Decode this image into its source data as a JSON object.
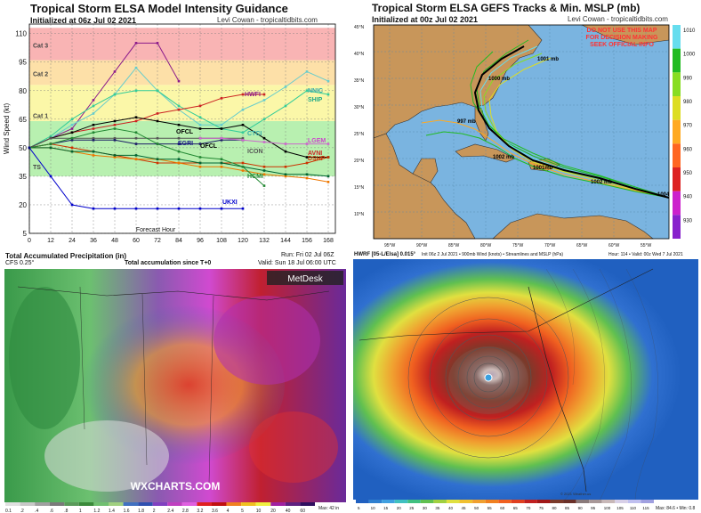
{
  "panel1": {
    "title": "Tropical Storm ELSA Model Intensity Guidance",
    "subtitle": "Initialized at 06z Jul 02 2021",
    "credit": "Levi Cowan - tropicaltidbits.com",
    "ylabel": "Wind Speed (kt)",
    "xlabel": "Forecast Hour",
    "category_labels": [
      "Cat 3",
      "Cat 2",
      "Cat 1",
      "TS"
    ],
    "model_labels": [
      "HWFI",
      "NNIC",
      "SHIP",
      "CTCI",
      "OFCL",
      "OFCL",
      "EGRI",
      "ICON",
      "LGEM",
      "AVNI",
      "HCMI",
      "DSHP",
      "UKXI"
    ],
    "chart_data": {
      "type": "line",
      "x": [
        0,
        12,
        24,
        36,
        48,
        60,
        72,
        84,
        96,
        108,
        120,
        132,
        144,
        156,
        168
      ],
      "xticks": [
        "0",
        "12",
        "24",
        "36",
        "48",
        "60",
        "72",
        "84",
        "96",
        "108",
        "120",
        "132",
        "144",
        "156",
        "168"
      ],
      "yticks": [
        "5",
        "20",
        "35",
        "50",
        "65",
        "80",
        "95",
        "110"
      ],
      "ylim": [
        5,
        115
      ],
      "xlim": [
        0,
        172
      ],
      "bands": [
        {
          "from": 35,
          "to": 64,
          "color": "#b8f0b0"
        },
        {
          "from": 64,
          "to": 83,
          "color": "#fbf7a8"
        },
        {
          "from": 83,
          "to": 96,
          "color": "#fde0a8"
        },
        {
          "from": 96,
          "to": 113,
          "color": "#f9b4b4"
        }
      ],
      "series": [
        {
          "color": "#8b1a8b",
          "x": [
            0,
            12,
            24,
            36,
            48,
            60,
            72,
            84
          ],
          "y": [
            50,
            55,
            60,
            75,
            90,
            105,
            105,
            85
          ]
        },
        {
          "color": "#66cccc",
          "x": [
            0,
            12,
            24,
            36,
            48,
            60,
            72,
            84,
            96,
            108,
            120,
            132,
            144,
            156,
            168
          ],
          "y": [
            50,
            55,
            62,
            68,
            78,
            92,
            80,
            70,
            62,
            62,
            70,
            75,
            82,
            90,
            85
          ]
        },
        {
          "color": "#33cc99",
          "x": [
            0,
            12,
            24,
            36,
            48,
            60,
            72,
            84,
            96,
            108,
            120,
            132,
            144,
            156,
            168
          ],
          "y": [
            50,
            56,
            65,
            72,
            78,
            80,
            80,
            72,
            66,
            60,
            58,
            65,
            72,
            80,
            78
          ]
        },
        {
          "color": "#cc2222",
          "x": [
            0,
            12,
            24,
            36,
            48,
            60,
            72,
            84,
            96,
            108,
            120,
            132
          ],
          "y": [
            50,
            55,
            58,
            60,
            62,
            64,
            68,
            70,
            72,
            76,
            78,
            78
          ]
        },
        {
          "color": "#000000",
          "x": [
            0,
            12,
            24,
            36,
            48,
            60,
            72,
            84,
            96,
            108,
            120,
            132,
            144,
            156,
            168
          ],
          "y": [
            50,
            55,
            58,
            62,
            64,
            66,
            64,
            62,
            60,
            60,
            62,
            55,
            48,
            45,
            45
          ]
        },
        {
          "color": "#555555",
          "x": [
            0,
            12,
            24,
            36,
            48,
            60,
            72,
            84,
            96,
            108,
            120
          ],
          "y": [
            50,
            55,
            55,
            55,
            55,
            55,
            55,
            55,
            55,
            55,
            55
          ]
        },
        {
          "color": "#1a1a66",
          "x": [
            0,
            12,
            24,
            36,
            48,
            60,
            72,
            84,
            96,
            108,
            120
          ],
          "y": [
            50,
            52,
            54,
            54,
            54,
            52,
            52,
            52,
            52,
            54,
            54
          ]
        },
        {
          "color": "#cc66cc",
          "x": [
            96,
            108,
            120,
            132,
            144,
            156,
            168
          ],
          "y": [
            55,
            55,
            54,
            53,
            52,
            52,
            52
          ]
        },
        {
          "color": "#cc3300",
          "x": [
            0,
            12,
            24,
            36,
            48,
            60,
            72,
            84,
            96,
            108,
            120,
            132,
            144,
            156,
            168
          ],
          "y": [
            50,
            52,
            50,
            48,
            46,
            44,
            42,
            42,
            42,
            42,
            42,
            40,
            40,
            42,
            45
          ]
        },
        {
          "color": "#ee7700",
          "x": [
            0,
            12,
            24,
            36,
            48,
            60,
            72,
            84,
            96,
            108,
            120,
            132,
            144,
            156,
            168
          ],
          "y": [
            50,
            50,
            48,
            46,
            45,
            44,
            44,
            42,
            40,
            40,
            38,
            36,
            35,
            34,
            32
          ]
        },
        {
          "color": "#006633",
          "x": [
            0,
            12,
            24,
            36,
            48,
            60,
            72,
            84,
            96,
            108,
            120,
            132,
            144,
            156,
            168
          ],
          "y": [
            50,
            50,
            48,
            48,
            46,
            46,
            44,
            44,
            42,
            42,
            40,
            38,
            36,
            36,
            35
          ]
        },
        {
          "color": "#228833",
          "x": [
            0,
            12,
            24,
            36,
            48,
            60,
            72,
            84,
            96,
            108,
            120,
            132
          ],
          "y": [
            50,
            52,
            55,
            58,
            60,
            58,
            52,
            48,
            45,
            44,
            40,
            30
          ]
        },
        {
          "color": "#0000cc",
          "x": [
            0,
            12,
            24,
            36,
            48,
            60,
            72,
            84,
            96,
            108,
            120
          ],
          "y": [
            50,
            35,
            20,
            18,
            18,
            18,
            18,
            18,
            18,
            18,
            18
          ]
        }
      ]
    }
  },
  "panel2": {
    "title": "Tropical Storm ELSA GEFS Tracks & Min. MSLP (mb)",
    "subtitle": "Initialized at 00z Jul 02 2021",
    "credit": "Levi Cowan - tropicaltidbits.com",
    "warning": [
      "DO NOT USE THIS MAP",
      "FOR DECISION MAKING",
      "SEEK OFFICIAL INFO"
    ],
    "colorbar_labels": [
      "1010",
      "1000",
      "990",
      "980",
      "970",
      "960",
      "950",
      "940",
      "930"
    ],
    "colorbar_colors": [
      "#66ddee",
      "#22bb22",
      "#88dd22",
      "#dddd22",
      "#ffaa22",
      "#ff6622",
      "#dd2222",
      "#cc22cc",
      "#8822cc"
    ],
    "track_labels": [
      "1000 mb",
      "1001 mb",
      "997 mb",
      "1002 mb",
      "1001mb",
      "1002 mb",
      "1004 mb"
    ],
    "lat_labels": [
      "45°N",
      "40°N",
      "35°N",
      "30°N",
      "25°N",
      "20°N",
      "15°N",
      "10°N"
    ],
    "lon_labels": [
      "95°W",
      "90°W",
      "85°W",
      "80°W",
      "75°W",
      "70°W",
      "65°W",
      "60°W",
      "55°W"
    ]
  },
  "panel3": {
    "title": "Total Accumulated Precipitation (in)",
    "model": "CFS 0.25°",
    "subtitle": "Total accumulation since T+0",
    "run": "Run: Fri 02 Jul 06Z",
    "valid": "Valid: Sun 18 Jul 06:00 UTC",
    "logo": "MetDesk",
    "watermark": "WXCHARTS.COM",
    "scale_labels": [
      "0.1",
      ".2",
      ".4",
      ".6",
      ".8",
      "1",
      "1.2",
      "1.4",
      "1.6",
      "1.8",
      "2",
      "2.4",
      "2.8",
      "3.2",
      "3.6",
      "4",
      "5",
      "10",
      "20",
      "40",
      "60"
    ],
    "scale_max": "Max: 42 in"
  },
  "panel4": {
    "title": "HWRF [05-L/Elsa] 0.015°",
    "subtitle": "Init 06z 2 Jul 2021 • 900mb Wind (knots) • Streamlines and MSLP (hPa)",
    "hour": "Hour: 114 • Valid: 00z Wed 7 Jul 2021",
    "scale_labels": [
      "5",
      "10",
      "15",
      "20",
      "25",
      "30",
      "35",
      "40",
      "45",
      "50",
      "55",
      "60",
      "65",
      "70",
      "75",
      "80",
      "85",
      "90",
      "95",
      "100",
      "105",
      "110",
      "115"
    ],
    "stats": "Max: 84.6 • Min: 0.8",
    "copyright": "© 2021 Weather.us"
  }
}
